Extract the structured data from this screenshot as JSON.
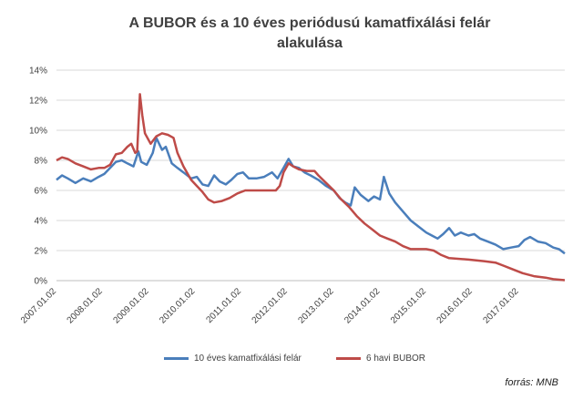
{
  "chart_data": {
    "type": "line",
    "title": "A BUBOR és a 10 éves periódusú kamatfixálási felár alakulása",
    "title_lines": [
      "A BUBOR és a 10 éves periódusú kamatfixálási felár",
      "alakulása"
    ],
    "xlabel": "",
    "ylabel": "",
    "ylim": [
      0,
      14
    ],
    "yticks": [
      0,
      2,
      4,
      6,
      8,
      10,
      12,
      14
    ],
    "ytick_labels": [
      "0%",
      "2%",
      "4%",
      "6%",
      "8%",
      "10%",
      "12%",
      "14%"
    ],
    "xlim": [
      "2007.01.02",
      "2017.12.31"
    ],
    "xtick_labels": [
      "2007.01.02",
      "2008.01.02",
      "2009.01.02",
      "2010.01.02",
      "2011.01.02",
      "2012.01.02",
      "2013.01.02",
      "2014.01.02",
      "2015.01.02",
      "2016.01.02",
      "2017.01.02"
    ],
    "grid": true,
    "legend_position": "bottom",
    "series": [
      {
        "name": "10 éves kamatfixálási felár",
        "color": "#4a7ebb",
        "points": [
          [
            "2007.01.02",
            6.7
          ],
          [
            "2007.02.15",
            7.0
          ],
          [
            "2007.04.01",
            6.8
          ],
          [
            "2007.06.01",
            6.5
          ],
          [
            "2007.08.01",
            6.8
          ],
          [
            "2007.10.01",
            6.6
          ],
          [
            "2007.12.01",
            6.9
          ],
          [
            "2008.01.15",
            7.1
          ],
          [
            "2008.03.01",
            7.5
          ],
          [
            "2008.04.15",
            7.9
          ],
          [
            "2008.06.01",
            8.0
          ],
          [
            "2008.07.15",
            7.8
          ],
          [
            "2008.09.01",
            7.6
          ],
          [
            "2008.10.10",
            8.6
          ],
          [
            "2008.11.01",
            7.9
          ],
          [
            "2008.12.15",
            7.7
          ],
          [
            "2009.02.01",
            8.5
          ],
          [
            "2009.03.01",
            9.5
          ],
          [
            "2009.04.15",
            8.7
          ],
          [
            "2009.05.15",
            8.9
          ],
          [
            "2009.07.01",
            7.8
          ],
          [
            "2009.08.15",
            7.5
          ],
          [
            "2009.10.01",
            7.2
          ],
          [
            "2009.12.01",
            6.8
          ],
          [
            "2010.01.15",
            6.9
          ],
          [
            "2010.03.01",
            6.4
          ],
          [
            "2010.04.15",
            6.3
          ],
          [
            "2010.06.01",
            7.0
          ],
          [
            "2010.07.15",
            6.6
          ],
          [
            "2010.09.01",
            6.4
          ],
          [
            "2010.10.15",
            6.7
          ],
          [
            "2010.12.01",
            7.1
          ],
          [
            "2011.01.15",
            7.2
          ],
          [
            "2011.03.01",
            6.8
          ],
          [
            "2011.05.01",
            6.8
          ],
          [
            "2011.07.01",
            6.9
          ],
          [
            "2011.09.01",
            7.2
          ],
          [
            "2011.10.15",
            6.8
          ],
          [
            "2011.12.01",
            7.5
          ],
          [
            "2012.01.10",
            8.1
          ],
          [
            "2012.02.15",
            7.6
          ],
          [
            "2012.04.01",
            7.5
          ],
          [
            "2012.05.15",
            7.2
          ],
          [
            "2012.07.01",
            7.0
          ],
          [
            "2012.09.01",
            6.7
          ],
          [
            "2012.11.01",
            6.3
          ],
          [
            "2013.01.01",
            6.0
          ],
          [
            "2013.02.15",
            5.5
          ],
          [
            "2013.04.01",
            5.2
          ],
          [
            "2013.05.15",
            5.0
          ],
          [
            "2013.06.15",
            6.2
          ],
          [
            "2013.08.01",
            5.7
          ],
          [
            "2013.10.01",
            5.3
          ],
          [
            "2013.11.15",
            5.6
          ],
          [
            "2014.01.01",
            5.4
          ],
          [
            "2014.02.01",
            6.9
          ],
          [
            "2014.03.15",
            5.8
          ],
          [
            "2014.05.01",
            5.2
          ],
          [
            "2014.07.01",
            4.6
          ],
          [
            "2014.09.01",
            4.0
          ],
          [
            "2014.11.01",
            3.6
          ],
          [
            "2015.01.01",
            3.2
          ],
          [
            "2015.02.15",
            3.0
          ],
          [
            "2015.04.01",
            2.8
          ],
          [
            "2015.05.15",
            3.1
          ],
          [
            "2015.07.01",
            3.5
          ],
          [
            "2015.08.15",
            3.0
          ],
          [
            "2015.10.01",
            3.2
          ],
          [
            "2015.12.01",
            3.0
          ],
          [
            "2016.01.15",
            3.1
          ],
          [
            "2016.03.01",
            2.8
          ],
          [
            "2016.05.01",
            2.6
          ],
          [
            "2016.07.01",
            2.4
          ],
          [
            "2016.09.01",
            2.1
          ],
          [
            "2016.11.01",
            2.2
          ],
          [
            "2017.01.01",
            2.3
          ],
          [
            "2017.02.15",
            2.7
          ],
          [
            "2017.04.01",
            2.9
          ],
          [
            "2017.06.01",
            2.6
          ],
          [
            "2017.08.01",
            2.5
          ],
          [
            "2017.10.01",
            2.2
          ],
          [
            "2017.11.15",
            2.1
          ],
          [
            "2017.12.31",
            1.8
          ]
        ]
      },
      {
        "name": "6 havi BUBOR",
        "color": "#be4b48",
        "points": [
          [
            "2007.01.02",
            8.0
          ],
          [
            "2007.02.15",
            8.2
          ],
          [
            "2007.04.01",
            8.1
          ],
          [
            "2007.06.01",
            7.8
          ],
          [
            "2007.08.01",
            7.6
          ],
          [
            "2007.10.01",
            7.4
          ],
          [
            "2007.12.01",
            7.5
          ],
          [
            "2008.01.15",
            7.5
          ],
          [
            "2008.03.01",
            7.7
          ],
          [
            "2008.04.15",
            8.4
          ],
          [
            "2008.06.01",
            8.5
          ],
          [
            "2008.07.15",
            8.9
          ],
          [
            "2008.08.15",
            9.1
          ],
          [
            "2008.09.15",
            8.5
          ],
          [
            "2008.10.01",
            8.6
          ],
          [
            "2008.10.22",
            12.4
          ],
          [
            "2008.11.10",
            11.0
          ],
          [
            "2008.12.01",
            9.8
          ],
          [
            "2009.01.15",
            9.1
          ],
          [
            "2009.03.01",
            9.6
          ],
          [
            "2009.04.15",
            9.8
          ],
          [
            "2009.06.01",
            9.7
          ],
          [
            "2009.07.15",
            9.5
          ],
          [
            "2009.08.15",
            8.5
          ],
          [
            "2009.10.01",
            7.6
          ],
          [
            "2009.12.01",
            6.7
          ],
          [
            "2010.01.15",
            6.3
          ],
          [
            "2010.03.01",
            5.9
          ],
          [
            "2010.04.15",
            5.4
          ],
          [
            "2010.06.01",
            5.2
          ],
          [
            "2010.08.01",
            5.3
          ],
          [
            "2010.10.01",
            5.5
          ],
          [
            "2010.12.01",
            5.8
          ],
          [
            "2011.02.01",
            6.0
          ],
          [
            "2011.06.01",
            6.0
          ],
          [
            "2011.10.01",
            6.0
          ],
          [
            "2011.11.01",
            6.3
          ],
          [
            "2011.12.01",
            7.2
          ],
          [
            "2012.01.10",
            7.8
          ],
          [
            "2012.02.15",
            7.6
          ],
          [
            "2012.04.01",
            7.4
          ],
          [
            "2012.06.01",
            7.3
          ],
          [
            "2012.08.01",
            7.3
          ],
          [
            "2012.09.01",
            7.0
          ],
          [
            "2012.11.01",
            6.5
          ],
          [
            "2013.01.01",
            6.0
          ],
          [
            "2013.03.01",
            5.4
          ],
          [
            "2013.05.01",
            4.9
          ],
          [
            "2013.07.01",
            4.3
          ],
          [
            "2013.09.01",
            3.8
          ],
          [
            "2013.11.01",
            3.4
          ],
          [
            "2014.01.01",
            3.0
          ],
          [
            "2014.03.01",
            2.8
          ],
          [
            "2014.05.01",
            2.6
          ],
          [
            "2014.07.01",
            2.3
          ],
          [
            "2014.09.01",
            2.1
          ],
          [
            "2015.01.01",
            2.1
          ],
          [
            "2015.03.01",
            2.0
          ],
          [
            "2015.05.01",
            1.7
          ],
          [
            "2015.07.01",
            1.5
          ],
          [
            "2015.12.01",
            1.4
          ],
          [
            "2016.04.01",
            1.3
          ],
          [
            "2016.07.01",
            1.2
          ],
          [
            "2016.09.01",
            1.0
          ],
          [
            "2016.11.01",
            0.8
          ],
          [
            "2017.02.01",
            0.5
          ],
          [
            "2017.05.01",
            0.3
          ],
          [
            "2017.08.01",
            0.2
          ],
          [
            "2017.10.01",
            0.1
          ],
          [
            "2017.12.31",
            0.03
          ]
        ]
      }
    ]
  },
  "source_label": "forrás: MNB"
}
